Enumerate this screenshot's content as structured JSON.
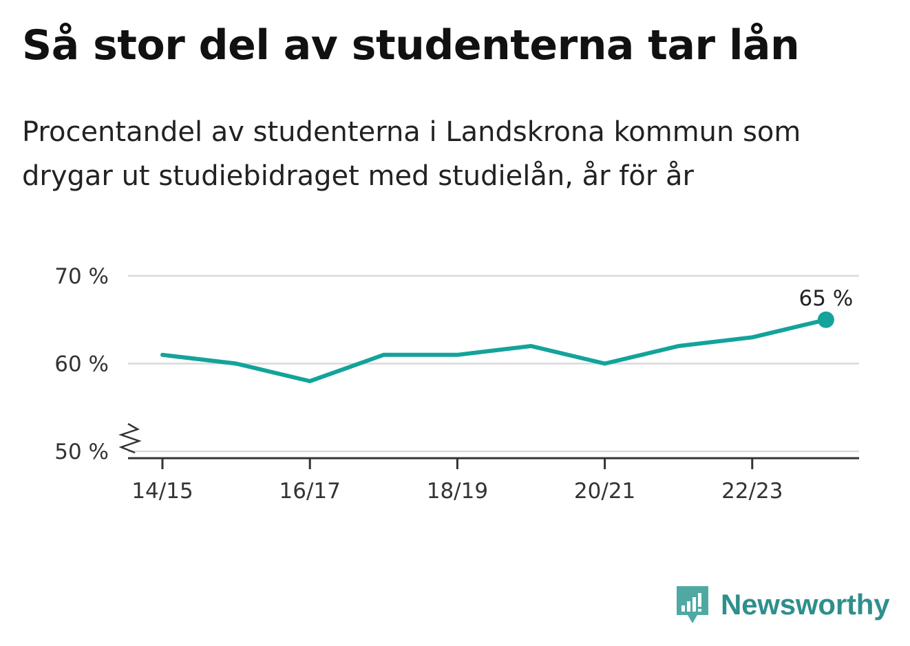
{
  "title": "Så stor del av studenterna tar lån",
  "subtitle": "Procentandel av studenterna i Landskrona kommun som drygar ut studiebidraget med studielån, år för år",
  "brand": {
    "name": "Newsworthy",
    "icon": "newsworthy-logo-icon",
    "color": "#2e8f8b"
  },
  "colors": {
    "line": "#13a39a",
    "grid": "#d9d9d9",
    "axis": "#333333"
  },
  "chart_data": {
    "type": "line",
    "x": [
      "14/15",
      "15/16",
      "16/17",
      "17/18",
      "18/19",
      "19/20",
      "20/21",
      "21/22",
      "22/23",
      "23/24"
    ],
    "x_tick_labels": [
      "14/15",
      "16/17",
      "18/19",
      "20/21",
      "22/23"
    ],
    "series": [
      {
        "values": [
          61,
          60,
          58,
          61,
          61,
          62,
          60,
          62,
          63,
          65
        ]
      }
    ],
    "y_ticks": [
      {
        "value": 50,
        "label": "50 %"
      },
      {
        "value": 60,
        "label": "60 %"
      },
      {
        "value": 70,
        "label": "70 %"
      }
    ],
    "ylim": [
      50,
      70
    ],
    "axis_break": true,
    "last_point_label": "65 %",
    "grid": true
  }
}
